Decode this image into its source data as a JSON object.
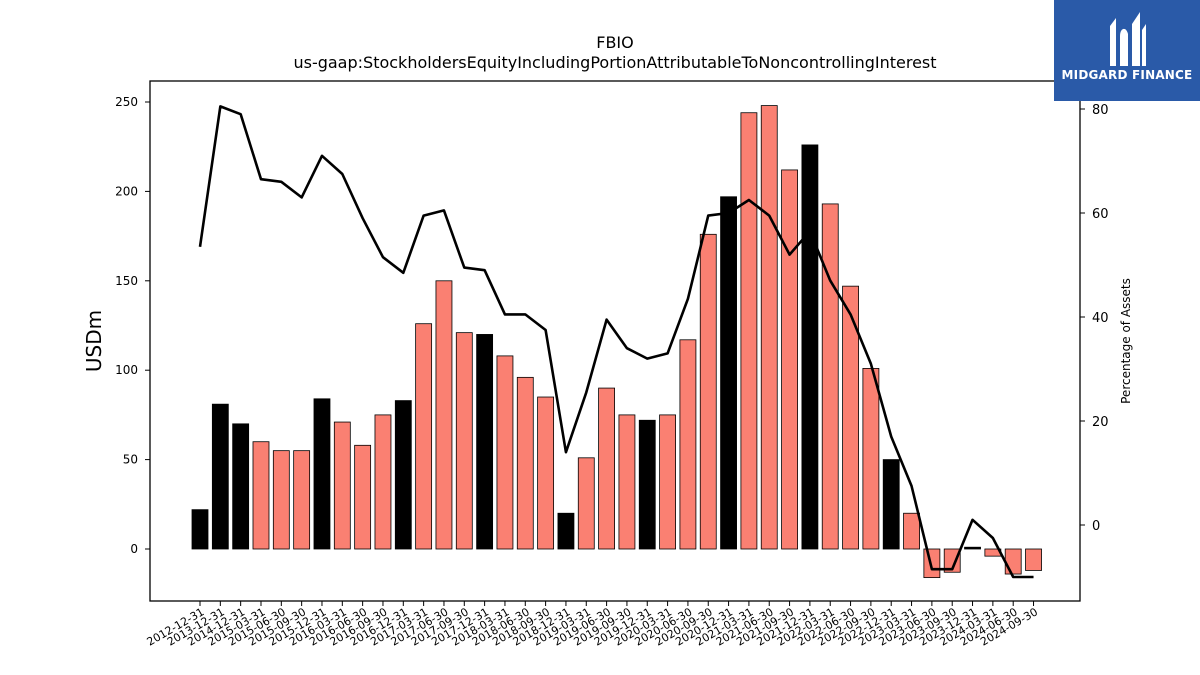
{
  "chart_data": {
    "type": "bar",
    "title": "FBIO",
    "subtitle": "us-gaap:StockholdersEquityIncludingPortionAttributableToNoncontrollingInterest",
    "ylabel": "USDm",
    "y2label": "Percentage of Assets",
    "ylim": [
      -30,
      262
    ],
    "y2lim": [
      -15,
      86
    ],
    "yticks": [
      0,
      50,
      100,
      150,
      200,
      250
    ],
    "y2ticks": [
      0,
      20,
      40,
      60,
      80
    ],
    "categories": [
      "2012-12-31",
      "2013-12-31",
      "2014-12-31",
      "2015-03-31",
      "2015-06-30",
      "2015-09-30",
      "2015-12-31",
      "2016-03-31",
      "2016-06-30",
      "2016-09-30",
      "2016-12-31",
      "2017-03-31",
      "2017-06-30",
      "2017-09-30",
      "2017-12-31",
      "2018-03-31",
      "2018-06-30",
      "2018-09-30",
      "2018-12-31",
      "2019-03-31",
      "2019-06-30",
      "2019-09-30",
      "2019-12-31",
      "2020-03-31",
      "2020-06-30",
      "2020-09-30",
      "2020-12-31",
      "2021-03-31",
      "2021-06-30",
      "2021-09-30",
      "2021-12-31",
      "2022-03-31",
      "2022-06-30",
      "2022-09-30",
      "2022-12-31",
      "2023-03-31",
      "2023-06-30",
      "2023-09-30",
      "2023-12-31",
      "2024-03-31",
      "2024-06-30",
      "2024-09-30"
    ],
    "series": [
      {
        "type": "bar",
        "values": [
          22,
          81,
          70,
          60,
          55,
          55,
          84,
          71,
          58,
          75,
          83,
          126,
          150,
          121,
          120,
          108,
          96,
          85,
          20,
          51,
          90,
          75,
          72,
          75,
          117,
          176,
          197,
          244,
          248,
          212,
          226,
          193,
          147,
          101,
          50,
          20,
          -16,
          -13,
          1,
          -4,
          -14,
          -12
        ],
        "highlight": [
          true,
          true,
          true,
          false,
          false,
          false,
          true,
          false,
          false,
          false,
          true,
          false,
          false,
          false,
          true,
          false,
          false,
          false,
          true,
          false,
          false,
          false,
          true,
          false,
          false,
          false,
          true,
          false,
          false,
          false,
          true,
          false,
          false,
          false,
          true,
          false,
          false,
          false,
          true,
          false,
          false,
          false
        ],
        "colors": {
          "default": "#fa8072",
          "highlight": "#000000"
        }
      },
      {
        "type": "line",
        "axis": "right",
        "color": "#000000",
        "values": [
          53.5,
          80.5,
          79,
          66.5,
          66,
          63,
          71,
          67.5,
          59,
          51.5,
          48.5,
          59.5,
          60.5,
          49.5,
          49,
          40.5,
          40.5,
          37.5,
          14,
          25.5,
          39.5,
          34,
          32,
          33,
          43.5,
          59.5,
          60,
          62.5,
          59.5,
          52,
          56.5,
          47,
          40.5,
          31,
          17,
          7.5,
          -8.5,
          -8.5,
          1,
          -2.5,
          -10,
          -10
        ]
      }
    ]
  },
  "logo": {
    "text": "MIDGARD FINANCE"
  }
}
